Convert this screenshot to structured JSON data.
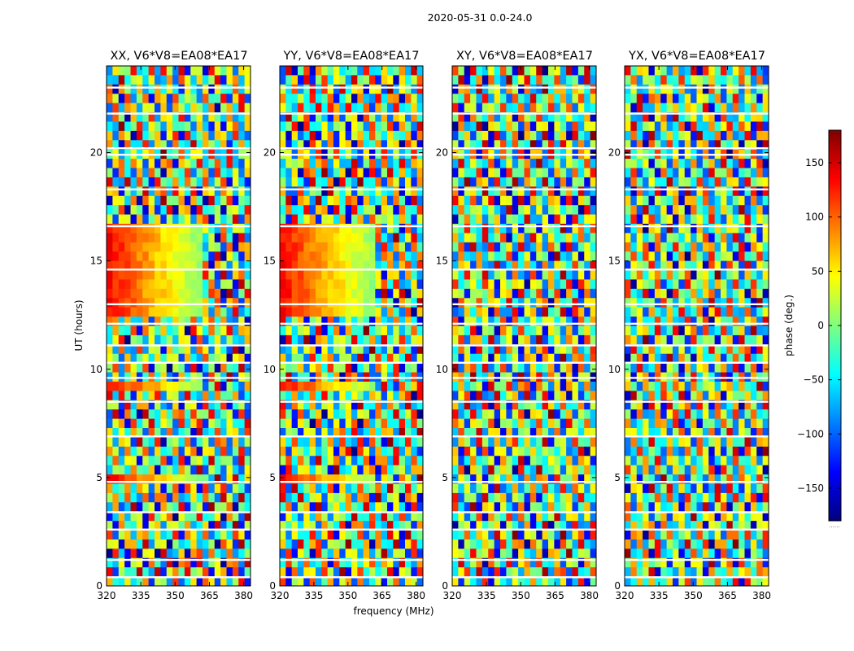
{
  "chart_data": {
    "type": "heatmap",
    "suptitle": "2020-05-31 0.0-24.0",
    "xlabel": "frequency (MHz)",
    "ylabel": "UT (hours)",
    "xlim": [
      320,
      383
    ],
    "ylim": [
      0,
      24
    ],
    "xticks": [
      "320",
      "335",
      "350",
      "365",
      "380"
    ],
    "yticks": [
      "0",
      "5",
      "10",
      "15",
      "20"
    ],
    "panels": [
      {
        "title": "XX, V6*V8=EA08*EA17",
        "coherent_mhz": 363
      },
      {
        "title": "YY, V6*V8=EA08*EA17",
        "coherent_mhz": 363
      },
      {
        "title": "XY, V6*V8=EA08*EA17",
        "coherent_mhz": 0
      },
      {
        "title": "YX, V6*V8=EA08*EA17",
        "coherent_mhz": 0
      }
    ],
    "coherent_hours": [
      4.8,
      5.2,
      8.8,
      9.3,
      12.4,
      13.5,
      13.9,
      16.9
    ],
    "flagged_hours": [
      0.4,
      1.2,
      2.6,
      3.4,
      4.8,
      6.9,
      8.5,
      9.6,
      10.3,
      11.1,
      12.1,
      13.0,
      14.6,
      16.6,
      18.3,
      19.9,
      20.2,
      21.8,
      23.0
    ],
    "colorbar": {
      "label": "phase (deg.)",
      "range": [
        -180,
        180
      ],
      "ticks": [
        "150",
        "100",
        "50",
        "0",
        "−50",
        "−100",
        "−150"
      ],
      "tick_values": [
        150,
        100,
        50,
        0,
        -50,
        -100,
        -150
      ],
      "footer": "......",
      "colormap": [
        "#00007f",
        "#0000ff",
        "#007fff",
        "#00ffff",
        "#7fff7f",
        "#ffff00",
        "#ff7f00",
        "#ff0000",
        "#7f0000"
      ]
    }
  }
}
